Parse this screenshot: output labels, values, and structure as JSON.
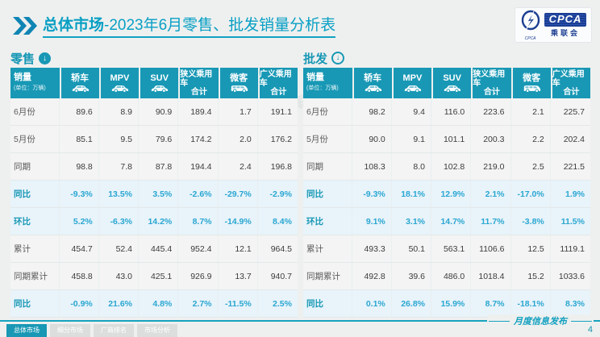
{
  "title": {
    "prefix": "总体市场",
    "rest": "-2023年6月零售、批发销量分析表"
  },
  "logo": {
    "cpca": "CPCA",
    "cn": "乘联会",
    "sub": "CPCA"
  },
  "table_header": {
    "first_label": "销量",
    "first_unit": "(单位：万辆)",
    "columns": [
      {
        "label": "轿车",
        "icon": "car"
      },
      {
        "label": "MPV",
        "icon": "car"
      },
      {
        "label": "SUV",
        "icon": "car"
      },
      {
        "label": "狭义乘用车",
        "label2": "合计"
      },
      {
        "label": "微客",
        "icon": "van"
      },
      {
        "label": "广义乘用车",
        "label2": "合计"
      }
    ]
  },
  "tables": [
    {
      "name": "零售",
      "arrow": "filled",
      "rows": [
        {
          "label": "6月份",
          "type": "num",
          "values": [
            "89.6",
            "8.9",
            "90.9",
            "189.4",
            "1.7",
            "191.1"
          ]
        },
        {
          "label": "5月份",
          "type": "num",
          "values": [
            "85.1",
            "9.5",
            "79.6",
            "174.2",
            "2.0",
            "176.2"
          ]
        },
        {
          "label": "同期",
          "type": "num",
          "values": [
            "98.8",
            "7.8",
            "87.8",
            "194.4",
            "2.4",
            "196.8"
          ]
        },
        {
          "label": "同比",
          "type": "pct",
          "values": [
            "-9.3%",
            "13.5%",
            "3.5%",
            "-2.6%",
            "-29.7%",
            "-2.9%"
          ]
        },
        {
          "label": "环比",
          "type": "pct",
          "values": [
            "5.2%",
            "-6.3%",
            "14.2%",
            "8.7%",
            "-14.9%",
            "8.4%"
          ]
        },
        {
          "label": "累计",
          "type": "num",
          "values": [
            "454.7",
            "52.4",
            "445.4",
            "952.4",
            "12.1",
            "964.5"
          ]
        },
        {
          "label": "同期累计",
          "type": "num",
          "values": [
            "458.8",
            "43.0",
            "425.1",
            "926.9",
            "13.7",
            "940.7"
          ]
        },
        {
          "label": "同比",
          "type": "pct",
          "values": [
            "-0.9%",
            "21.6%",
            "4.8%",
            "2.7%",
            "-11.5%",
            "2.5%"
          ]
        }
      ]
    },
    {
      "name": "批发",
      "arrow": "outline",
      "rows": [
        {
          "label": "6月份",
          "type": "num",
          "values": [
            "98.2",
            "9.4",
            "116.0",
            "223.6",
            "2.1",
            "225.7"
          ]
        },
        {
          "label": "5月份",
          "type": "num",
          "values": [
            "90.0",
            "9.1",
            "101.1",
            "200.3",
            "2.2",
            "202.4"
          ]
        },
        {
          "label": "同期",
          "type": "num",
          "values": [
            "108.3",
            "8.0",
            "102.8",
            "219.0",
            "2.5",
            "221.5"
          ]
        },
        {
          "label": "同比",
          "type": "pct",
          "values": [
            "-9.3%",
            "18.1%",
            "12.9%",
            "2.1%",
            "-17.0%",
            "1.9%"
          ]
        },
        {
          "label": "环比",
          "type": "pct",
          "values": [
            "9.1%",
            "3.1%",
            "14.7%",
            "11.7%",
            "-3.8%",
            "11.5%"
          ]
        },
        {
          "label": "累计",
          "type": "num",
          "values": [
            "493.3",
            "50.1",
            "563.1",
            "1106.6",
            "12.5",
            "1119.1"
          ]
        },
        {
          "label": "同期累计",
          "type": "num",
          "values": [
            "492.8",
            "39.6",
            "486.0",
            "1018.4",
            "15.2",
            "1033.6"
          ]
        },
        {
          "label": "同比",
          "type": "pct",
          "values": [
            "0.1%",
            "26.8%",
            "15.9%",
            "8.7%",
            "-18.1%",
            "8.3%"
          ]
        }
      ]
    }
  ],
  "watermark": "CPCA乘联会",
  "footer": {
    "tabs": [
      {
        "label": "总体市场",
        "active": true
      },
      {
        "label": "细分市场",
        "active": false
      },
      {
        "label": "厂商排名",
        "active": false
      },
      {
        "label": "市场分析",
        "active": false
      }
    ],
    "publish_label": "月度信息发布",
    "page": "4"
  },
  "colors": {
    "accent_teal": "#1898b5",
    "title_teal": "#089fc4",
    "pct_blue": "#2aa7d2",
    "logo_blue": "#1c3e92"
  }
}
